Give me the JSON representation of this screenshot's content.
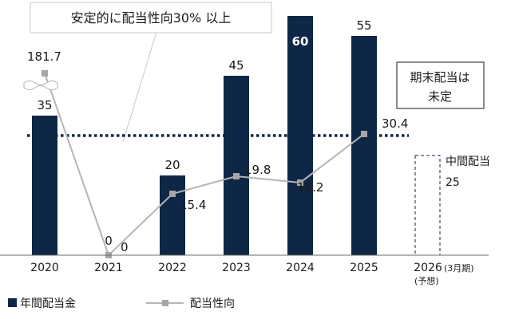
{
  "chart_data": {
    "type": "bar",
    "categories": [
      "2020",
      "2021",
      "2022",
      "2023",
      "2024",
      "2025",
      "2026"
    ],
    "forecast_category_note": "(3月期)",
    "forecast_category_sub": "(予想)",
    "series": [
      {
        "name": "年間配当金",
        "type": "bar",
        "values": [
          35,
          0,
          20,
          45,
          60,
          55,
          null
        ],
        "labels": [
          "35",
          "0",
          "20",
          "45",
          "60",
          "55",
          ""
        ],
        "color": "#0f2747"
      },
      {
        "name": "配当性向",
        "type": "line",
        "values": [
          181.7,
          0,
          15.4,
          19.8,
          18.2,
          30.4,
          null
        ],
        "labels": [
          "181.7",
          "0",
          "15.4",
          "19.8",
          "18.2",
          "30.4",
          ""
        ],
        "color": "#b5b5b5",
        "axis_break": true
      }
    ],
    "target_line": {
      "value": 30,
      "label": "安定的に配当性向30% 以上"
    },
    "forecast": {
      "interim_label": "中間配当",
      "interim_value": "25"
    },
    "note": [
      "期末配当は",
      "未定"
    ],
    "ylim_dividend": [
      0,
      60
    ],
    "ylim_ratio": [
      0,
      60
    ],
    "grid": false,
    "legend_position": "bottom-left"
  }
}
